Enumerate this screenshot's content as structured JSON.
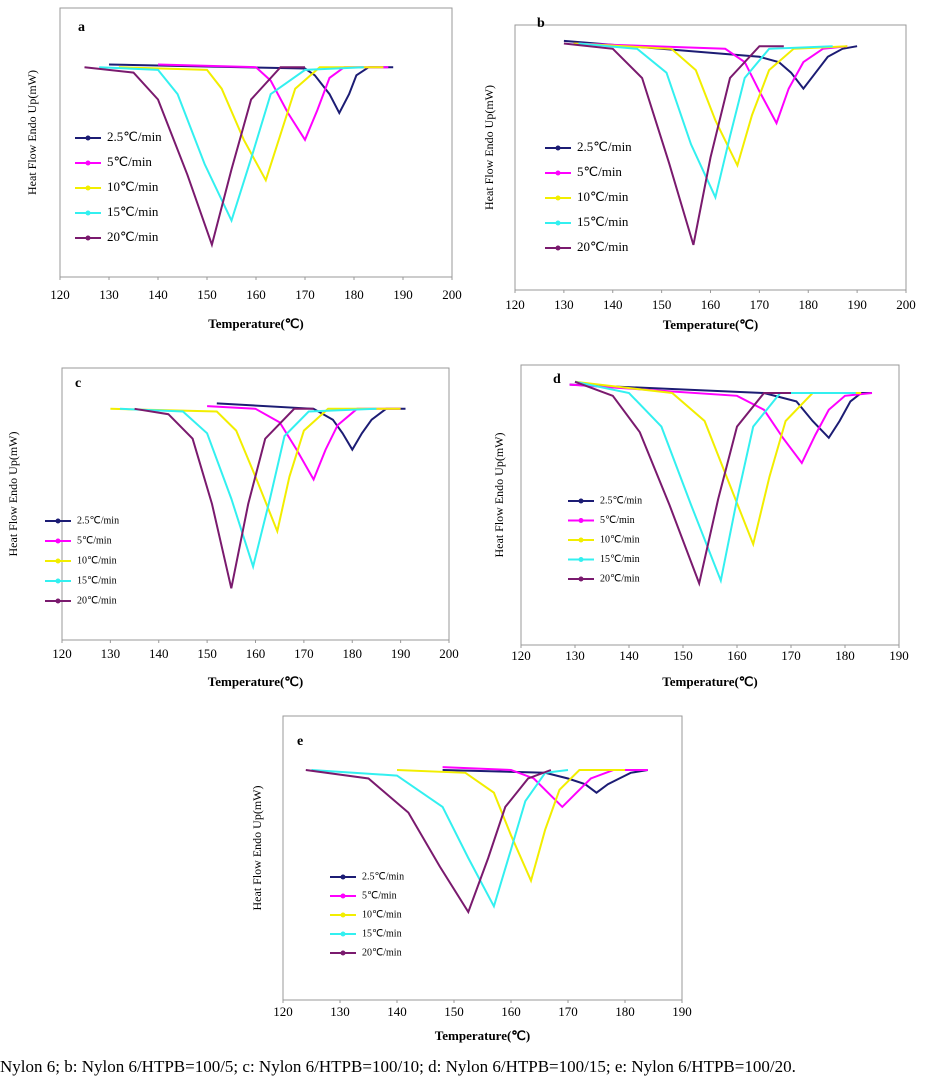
{
  "chart_data": [
    {
      "type": "line",
      "title": "a",
      "x_label": "Temperature(℃)",
      "y_label": "Heat Flow Endo Up(mW)",
      "xlim": [
        120,
        200
      ],
      "xticks": [
        120,
        130,
        140,
        150,
        160,
        170,
        180,
        190,
        200
      ],
      "ylim": [
        0,
        100
      ],
      "series": [
        {
          "name": "2.5℃/min",
          "color": "#1c1c74",
          "x": [
            130,
            170,
            172,
            175,
            177,
            179,
            180.5,
            183,
            188
          ],
          "values": [
            79,
            77.5,
            75,
            68,
            61,
            68,
            75,
            78,
            78
          ]
        },
        {
          "name": "5℃/min",
          "color": "#ff00ff",
          "x": [
            140,
            160,
            163,
            166.5,
            170,
            172.5,
            175,
            178,
            187
          ],
          "values": [
            79,
            78,
            73,
            61,
            51,
            62,
            74,
            78,
            78
          ]
        },
        {
          "name": "10℃/min",
          "color": "#f2ee00",
          "x": [
            132,
            150,
            153,
            157.5,
            162,
            165,
            168,
            173,
            186
          ],
          "values": [
            78,
            77,
            70,
            51,
            36,
            53,
            70,
            78,
            78
          ]
        },
        {
          "name": "15℃/min",
          "color": "#33f0f0",
          "x": [
            128,
            140,
            144,
            149.5,
            155,
            159,
            163,
            170,
            182
          ],
          "values": [
            78,
            77,
            68,
            42,
            21,
            44,
            68,
            77,
            78
          ]
        },
        {
          "name": "20℃/min",
          "color": "#7a1a6e",
          "x": [
            125,
            135,
            140,
            146,
            151,
            155,
            159,
            165,
            170
          ],
          "values": [
            78,
            76,
            66,
            38,
            12,
            40,
            66,
            78,
            78
          ]
        }
      ]
    },
    {
      "type": "line",
      "title": "b",
      "x_label": "Temperature(℃)",
      "y_label": "Heat Flow Endo Up(mW)",
      "xlim": [
        120,
        200
      ],
      "xticks": [
        120,
        130,
        140,
        150,
        160,
        170,
        180,
        190,
        200
      ],
      "ylim": [
        0,
        100
      ],
      "series": [
        {
          "name": "2.5℃/min",
          "color": "#1c1c74",
          "x": [
            130,
            170,
            174,
            176.5,
            179,
            181.5,
            184,
            187,
            190
          ],
          "values": [
            94,
            88,
            86,
            82,
            76,
            82,
            88,
            91,
            92
          ]
        },
        {
          "name": "5℃/min",
          "color": "#ff00ff",
          "x": [
            132,
            163,
            167,
            170,
            173.5,
            176,
            179,
            183,
            188
          ],
          "values": [
            93,
            91,
            86,
            75,
            63,
            76,
            86,
            91,
            92
          ]
        },
        {
          "name": "10℃/min",
          "color": "#f2ee00",
          "x": [
            132,
            152,
            157,
            161,
            165.5,
            168.5,
            172,
            177,
            188
          ],
          "values": [
            93,
            91,
            83,
            64,
            47,
            66,
            83,
            91,
            92
          ]
        },
        {
          "name": "15℃/min",
          "color": "#33f0f0",
          "x": [
            133,
            145,
            151,
            156,
            161,
            164,
            167,
            172,
            185
          ],
          "values": [
            93,
            91,
            82,
            55,
            35,
            58,
            80,
            91,
            92
          ]
        },
        {
          "name": "20℃/min",
          "color": "#7a1a6e",
          "x": [
            130,
            140,
            146,
            151.5,
            156.5,
            160,
            164,
            170,
            175
          ],
          "values": [
            93,
            91,
            80,
            48,
            17,
            50,
            80,
            92,
            92
          ]
        }
      ]
    },
    {
      "type": "line",
      "title": "c",
      "x_label": "Temperature(℃)",
      "y_label": "Heat Flow Endo Up(mW)",
      "xlim": [
        120,
        200
      ],
      "xticks": [
        120,
        130,
        140,
        150,
        160,
        170,
        180,
        190,
        200
      ],
      "ylim": [
        0,
        100
      ],
      "series": [
        {
          "name": "2.5℃/min",
          "color": "#1c1c74",
          "x": [
            152,
            172,
            176,
            178,
            180,
            182,
            184,
            187,
            191
          ],
          "values": [
            87,
            85,
            81,
            76,
            70,
            76,
            81,
            85,
            85
          ]
        },
        {
          "name": "5℃/min",
          "color": "#ff00ff",
          "x": [
            150,
            160,
            165,
            168.5,
            172,
            174.5,
            177,
            181,
            190
          ],
          "values": [
            86,
            85,
            80,
            70,
            59,
            70,
            79,
            85,
            85
          ]
        },
        {
          "name": "10℃/min",
          "color": "#f2ee00",
          "x": [
            130,
            152,
            156,
            160,
            164.5,
            167,
            170,
            175,
            190
          ],
          "values": [
            85,
            84,
            77,
            60,
            40,
            60,
            77,
            85,
            85
          ]
        },
        {
          "name": "15℃/min",
          "color": "#33f0f0",
          "x": [
            132,
            145,
            150,
            155,
            159.5,
            163,
            166,
            171,
            185
          ],
          "values": [
            85,
            84,
            76,
            52,
            27,
            52,
            75,
            84,
            85
          ]
        },
        {
          "name": "20℃/min",
          "color": "#7a1a6e",
          "x": [
            135,
            142,
            147,
            151,
            155,
            158.5,
            162,
            168,
            172
          ],
          "values": [
            85,
            83,
            74,
            50,
            19,
            50,
            74,
            85,
            85
          ]
        }
      ]
    },
    {
      "type": "line",
      "title": "d",
      "x_label": "Temperature(℃)",
      "y_label": "Heat Flow Endo Up(mW)",
      "xlim": [
        120,
        190
      ],
      "xticks": [
        120,
        130,
        140,
        150,
        160,
        170,
        180,
        190
      ],
      "ylim": [
        0,
        100
      ],
      "series": [
        {
          "name": "2.5℃/min",
          "color": "#1c1c74",
          "x": [
            129,
            165,
            171,
            174,
            177,
            179,
            181,
            183,
            185
          ],
          "values": [
            93,
            90,
            87,
            80,
            74,
            80,
            87,
            90,
            90
          ]
        },
        {
          "name": "5℃/min",
          "color": "#ff00ff",
          "x": [
            129,
            160,
            165,
            168.5,
            172,
            174.5,
            177,
            180,
            185
          ],
          "values": [
            93,
            89,
            84,
            74,
            65,
            75,
            84,
            89,
            90
          ]
        },
        {
          "name": "10℃/min",
          "color": "#f2ee00",
          "x": [
            130,
            148,
            154,
            158.5,
            163,
            166,
            169,
            174,
            183
          ],
          "values": [
            94,
            90,
            80,
            58,
            36,
            60,
            80,
            90,
            90
          ]
        },
        {
          "name": "15℃/min",
          "color": "#33f0f0",
          "x": [
            130,
            140,
            146,
            151.5,
            157,
            160,
            163,
            168,
            182
          ],
          "values": [
            94,
            90,
            78,
            50,
            23,
            52,
            78,
            90,
            90
          ]
        },
        {
          "name": "20℃/min",
          "color": "#7a1a6e",
          "x": [
            130,
            137,
            142,
            147.5,
            153,
            156.5,
            160,
            165,
            170
          ],
          "values": [
            94,
            89,
            76,
            50,
            22,
            52,
            78,
            90,
            90
          ]
        }
      ]
    },
    {
      "type": "line",
      "title": "e",
      "x_label": "Temperature(℃)",
      "y_label": "Heat Flow Endo Up(mW)",
      "xlim": [
        120,
        190
      ],
      "xticks": [
        120,
        130,
        140,
        150,
        160,
        170,
        180,
        190
      ],
      "ylim": [
        0,
        100
      ],
      "series": [
        {
          "name": "2.5℃/min",
          "color": "#1c1c74",
          "x": [
            148,
            166,
            170,
            173,
            175,
            177,
            179,
            181,
            184
          ],
          "values": [
            81,
            80,
            78,
            76,
            73,
            76,
            78,
            80,
            81
          ]
        },
        {
          "name": "5℃/min",
          "color": "#ff00ff",
          "x": [
            148,
            160,
            164,
            166.5,
            169,
            171.5,
            174,
            178,
            184
          ],
          "values": [
            82,
            81,
            78,
            73,
            68,
            73,
            78,
            81,
            81
          ]
        },
        {
          "name": "10℃/min",
          "color": "#f2ee00",
          "x": [
            140,
            152,
            157,
            160,
            163.5,
            166,
            168.5,
            172,
            180
          ],
          "values": [
            81,
            80,
            73,
            58,
            42,
            60,
            74,
            81,
            81
          ]
        },
        {
          "name": "15℃/min",
          "color": "#33f0f0",
          "x": [
            125,
            140,
            148,
            152.5,
            157,
            160,
            162.5,
            166,
            170
          ],
          "values": [
            81,
            79,
            68,
            50,
            33,
            53,
            70,
            80,
            81
          ]
        },
        {
          "name": "20℃/min",
          "color": "#7a1a6e",
          "x": [
            124,
            135,
            142,
            147.5,
            152.5,
            156,
            159,
            163,
            167
          ],
          "values": [
            81,
            78,
            66,
            47,
            31,
            50,
            68,
            78,
            81
          ]
        }
      ]
    }
  ],
  "caption": "Nylon 6; b: Nylon 6/HTPB=100/5; c: Nylon 6/HTPB=100/10; d: Nylon 6/HTPB=100/15; e: Nylon 6/HTPB=100/20."
}
